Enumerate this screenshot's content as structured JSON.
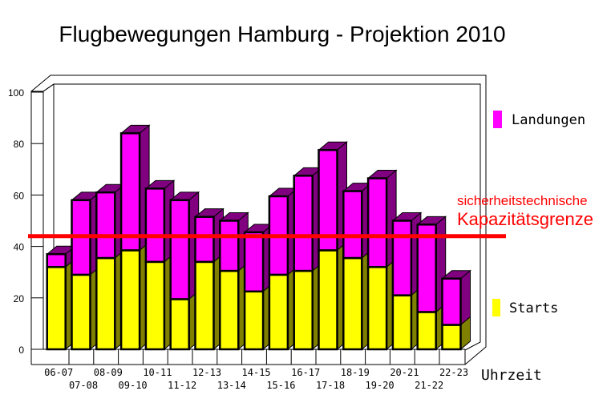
{
  "chart_data": {
    "type": "bar",
    "stacked": true,
    "three_d": true,
    "title": "Flugbewegungen Hamburg - Projektion 2010",
    "xlabel": "Uhrzeit",
    "ylabel": "",
    "ylim": [
      0,
      100
    ],
    "yticks": [
      0,
      20,
      40,
      60,
      80,
      100
    ],
    "legend_position": "right",
    "categories": [
      "06-07",
      "07-08",
      "08-09",
      "09-10",
      "10-11",
      "11-12",
      "12-13",
      "13-14",
      "14-15",
      "15-16",
      "16-17",
      "17-18",
      "18-19",
      "19-20",
      "20-21",
      "21-22",
      "22-23"
    ],
    "series": [
      {
        "name": "Starts",
        "color": "#ffff00",
        "side_color": "#808000",
        "values": [
          32,
          29,
          35.5,
          38.5,
          34,
          19.5,
          34,
          30.5,
          22.5,
          29,
          30.5,
          38.5,
          35.5,
          32,
          21,
          14.5,
          9.5
        ]
      },
      {
        "name": "Landungen",
        "color": "#ff00ff",
        "side_color": "#800080",
        "values": [
          5,
          29,
          25.5,
          45.5,
          28.5,
          38.5,
          17.5,
          19.5,
          23,
          30.5,
          37,
          39,
          26,
          34.5,
          29,
          34,
          18
        ]
      }
    ],
    "annotation": {
      "line1": "sicherheitstechnische",
      "line2": "Kapazitätsgrenze",
      "value": 44,
      "color": "#ff0000"
    },
    "grid": false
  }
}
